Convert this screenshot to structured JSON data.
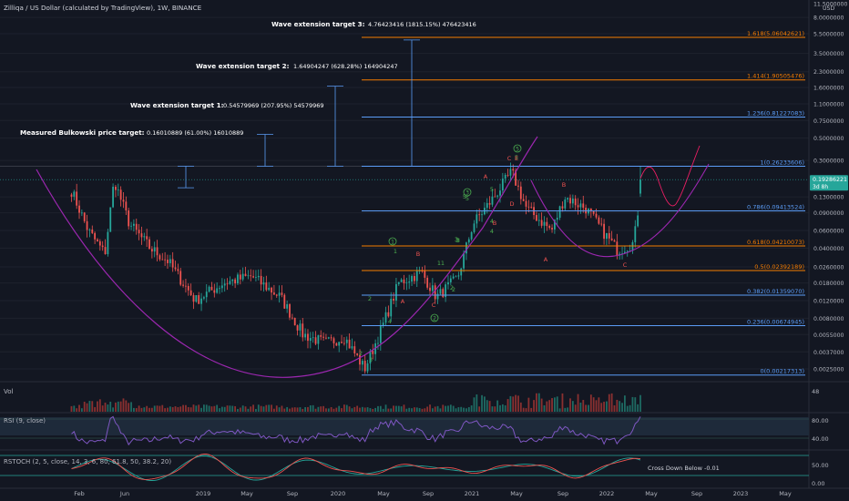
{
  "header": {
    "title": "Zilliqa / US Dollar (calculated by TradingView), 1W, BINANCE"
  },
  "price_axis": {
    "unit": "USD",
    "ticks": [
      "11.5000000",
      "8.0000000",
      "5.5000000",
      "3.5000000",
      "2.3000000",
      "1.6000000",
      "1.1000000",
      "0.7500000",
      "0.5000000",
      "0.3000000",
      "0.1300000",
      "0.0900000",
      "0.0600000",
      "0.0400000",
      "0.0260000",
      "0.0180000",
      "0.0120000",
      "0.0080000",
      "0.0055000",
      "0.0037000",
      "0.0025000"
    ],
    "last_price": "0.19286221",
    "countdown": "3d 8h"
  },
  "time_axis": {
    "labels": [
      "Feb",
      "Jun",
      "2019",
      "May",
      "Sep",
      "2020",
      "May",
      "Sep",
      "2021",
      "May",
      "Sep",
      "2022",
      "May",
      "Sep",
      "2023",
      "May"
    ]
  },
  "fib_levels": [
    {
      "label": "1.618(5.06042621)",
      "color": "#f57c00"
    },
    {
      "label": "1.414(1.90505476)",
      "color": "#f57c00"
    },
    {
      "label": "1.236(0.81227083)",
      "color": "#5b9cf6"
    },
    {
      "label": "1(0.26233606)",
      "color": "#5b9cf6"
    },
    {
      "label": "0.786(0.09413524)",
      "color": "#5b9cf6"
    },
    {
      "label": "0.618(0.04210073)",
      "color": "#f57c00"
    },
    {
      "label": "0.5(0.02392189)",
      "color": "#f57c00"
    },
    {
      "label": "0.382(0.01359070)",
      "color": "#5b9cf6"
    },
    {
      "label": "0.236(0.00674945)",
      "color": "#5b9cf6"
    },
    {
      "label": "0(0.00217313)",
      "color": "#5b9cf6"
    }
  ],
  "targets": [
    {
      "title": "Measured Bulkowski price target:",
      "value": "0.16010889 (61.00%) 16010889"
    },
    {
      "title": "Wave extension target 1:",
      "value": "0.54579969 (207.95%) 54579969"
    },
    {
      "title": "Wave extension target 2:",
      "value": "1.64904247 (628.28%) 164904247"
    },
    {
      "title": "Wave extension target 3:",
      "value": "4.76423416 (1815.15%) 476423416"
    }
  ],
  "wave_labels": {
    "green": [
      "1",
      "2",
      "3",
      "4",
      "5",
      "1",
      "2",
      "3",
      "4",
      "5",
      "2",
      "5",
      "3",
      "4",
      "5",
      "1",
      "2",
      "3"
    ],
    "red": [
      "A",
      "B",
      "C",
      "A",
      "B",
      "C",
      "D",
      "E",
      "A",
      "B",
      "C"
    ],
    "circled": [
      "1",
      "2",
      "3",
      "5"
    ]
  },
  "volume": {
    "label": "Vol",
    "axis_tick": "48"
  },
  "rsi": {
    "label": "RSI (9, close)",
    "ticks": [
      "80.00",
      "40.00"
    ]
  },
  "rstoch": {
    "label": "RSTOCH (2, 5, close, 14, 3, 6, 80, 61.8, 50, 38.2, 20)",
    "ticks": [
      "50.00",
      "0.00"
    ],
    "annotation": "Cross Down Below -0.01"
  },
  "colors": {
    "background": "#131722",
    "up": "#26a69a",
    "down": "#ef5350",
    "fib_blue": "#5b9cf6",
    "fib_orange": "#f57c00",
    "cup_arc": "#9c27b0",
    "forecast": "#e91e63",
    "rsi_line": "#7e57c2",
    "price_badge": "#26a69a"
  },
  "chart_data": {
    "type": "candlestick",
    "scale": "log",
    "symbol": "Zilliqa / US Dollar",
    "interval": "1W",
    "exchange": "BINANCE",
    "ylim": [
      0.0022,
      11.5
    ],
    "anchors": [
      {
        "date": "2018-01-15",
        "price": 0.15
      },
      {
        "date": "2018-03-01",
        "price": 0.06
      },
      {
        "date": "2018-04-15",
        "price": 0.035
      },
      {
        "date": "2018-05-10",
        "price": 0.19
      },
      {
        "date": "2018-06-20",
        "price": 0.07
      },
      {
        "date": "2018-08-15",
        "price": 0.04
      },
      {
        "date": "2018-10-01",
        "price": 0.03
      },
      {
        "date": "2018-12-15",
        "price": 0.012
      },
      {
        "date": "2019-03-01",
        "price": 0.018
      },
      {
        "date": "2019-05-15",
        "price": 0.021
      },
      {
        "date": "2019-08-01",
        "price": 0.013
      },
      {
        "date": "2019-10-01",
        "price": 0.0055
      },
      {
        "date": "2019-12-01",
        "price": 0.0045
      },
      {
        "date": "2020-01-20",
        "price": 0.0052
      },
      {
        "date": "2020-03-15",
        "price": 0.0025
      },
      {
        "date": "2020-05-01",
        "price": 0.0065
      },
      {
        "date": "2020-06-15",
        "price": 0.018
      },
      {
        "date": "2020-08-15",
        "price": 0.023
      },
      {
        "date": "2020-09-25",
        "price": 0.013
      },
      {
        "date": "2020-11-20",
        "price": 0.02
      },
      {
        "date": "2021-01-01",
        "price": 0.07
      },
      {
        "date": "2021-02-20",
        "price": 0.12
      },
      {
        "date": "2021-04-15",
        "price": 0.23
      },
      {
        "date": "2021-05-25",
        "price": 0.1
      },
      {
        "date": "2021-08-01",
        "price": 0.06
      },
      {
        "date": "2021-09-05",
        "price": 0.13
      },
      {
        "date": "2021-11-01",
        "price": 0.1
      },
      {
        "date": "2021-12-15",
        "price": 0.06
      },
      {
        "date": "2022-01-25",
        "price": 0.038
      },
      {
        "date": "2022-03-10",
        "price": 0.045
      },
      {
        "date": "2022-04-01",
        "price": 0.19
      }
    ],
    "fib_retracement": [
      {
        "level": 1.618,
        "price": 5.06042621
      },
      {
        "level": 1.414,
        "price": 1.90505476
      },
      {
        "level": 1.236,
        "price": 0.81227083
      },
      {
        "level": 1.0,
        "price": 0.26233606
      },
      {
        "level": 0.786,
        "price": 0.09413524
      },
      {
        "level": 0.618,
        "price": 0.04210073
      },
      {
        "level": 0.5,
        "price": 0.02392189
      },
      {
        "level": 0.382,
        "price": 0.0135907
      },
      {
        "level": 0.236,
        "price": 0.00674945
      },
      {
        "level": 0.0,
        "price": 0.00217313
      }
    ],
    "price_targets": [
      {
        "price": 0.16010889,
        "percent": 61.0
      },
      {
        "price": 0.54579969,
        "percent": 207.95
      },
      {
        "price": 1.64904247,
        "percent": 628.28
      },
      {
        "price": 4.76423416,
        "percent": 1815.15
      }
    ],
    "last_price": 0.19286221
  }
}
